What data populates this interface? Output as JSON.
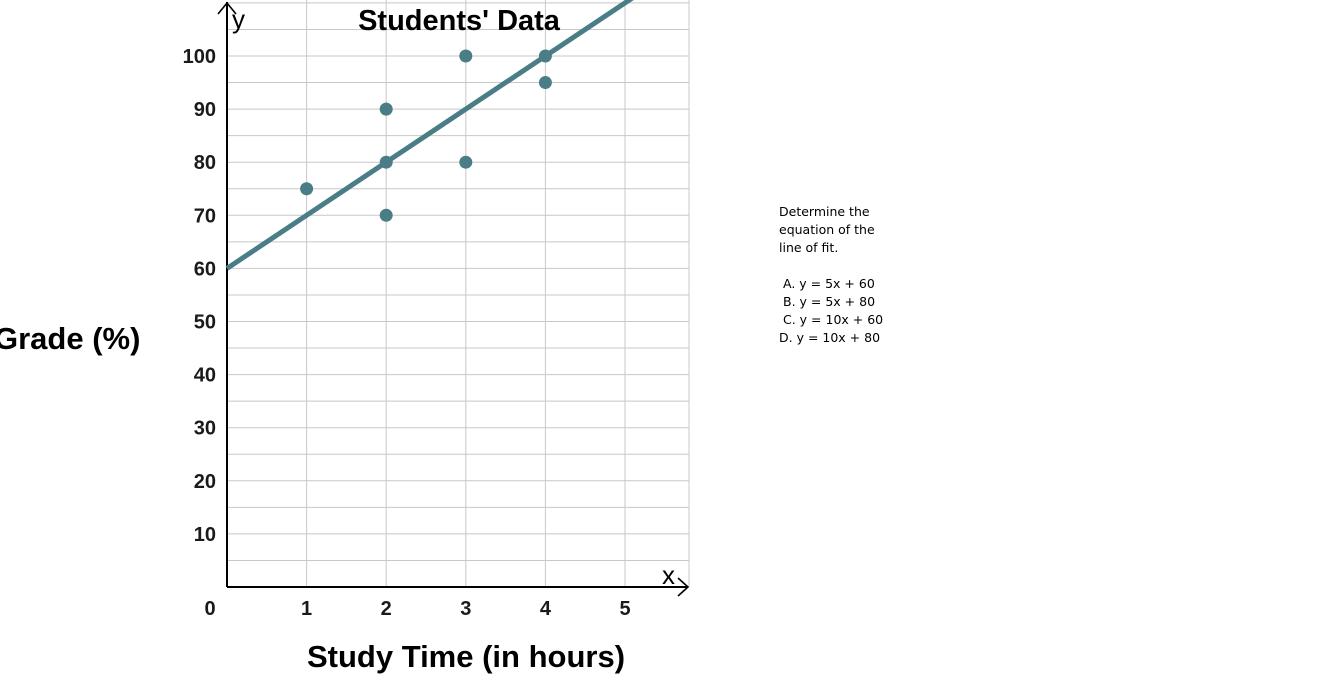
{
  "chart_data": {
    "type": "scatter",
    "title": "Students' Data",
    "xlabel": "Study Time (in hours)",
    "ylabel": "Grade (%)",
    "x_axis_letter": "x",
    "y_axis_letter": "y",
    "xlim": [
      0,
      5.8
    ],
    "ylim": [
      0,
      110
    ],
    "x_ticks": [
      0,
      1,
      2,
      3,
      4,
      5
    ],
    "x_tick_labels": [
      "0",
      "1",
      "2",
      "3",
      "4",
      "5"
    ],
    "y_ticks": [
      10,
      20,
      30,
      40,
      50,
      60,
      70,
      80,
      90,
      100
    ],
    "y_tick_labels": [
      "10",
      "20",
      "30",
      "40",
      "50",
      "60",
      "70",
      "80",
      "90",
      "100"
    ],
    "grid": true,
    "points": [
      {
        "x": 1,
        "y": 75
      },
      {
        "x": 2,
        "y": 90
      },
      {
        "x": 2,
        "y": 80
      },
      {
        "x": 2,
        "y": 70
      },
      {
        "x": 3,
        "y": 100
      },
      {
        "x": 3,
        "y": 80
      },
      {
        "x": 4,
        "y": 100
      },
      {
        "x": 4,
        "y": 95
      }
    ],
    "line_of_fit": {
      "slope": 10,
      "intercept": 60
    },
    "colors": {
      "marker": "#4a7d86",
      "line": "#4a7d86",
      "grid": "#c8c8c8",
      "axis": "#000000"
    }
  },
  "question": {
    "prompt": "Determine the equation of the line of fit.",
    "options": [
      "A. y = 5x + 60",
      "B. y = 5x + 80",
      "C. y = 10x + 60",
      "D.  y = 10x + 80"
    ]
  }
}
